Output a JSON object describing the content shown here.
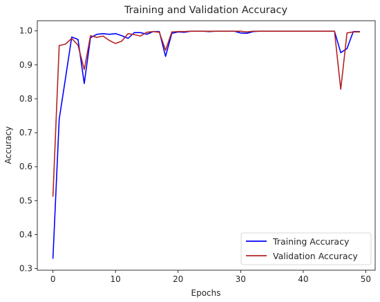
{
  "chart_data": {
    "type": "line",
    "title": "Training and Validation Accuracy",
    "xlabel": "Epochs",
    "ylabel": "Accuracy",
    "xlim": [
      -2.5,
      51.5
    ],
    "ylim": [
      0.295,
      1.03
    ],
    "xticks": [
      0,
      10,
      20,
      30,
      40,
      50
    ],
    "yticks": [
      0.3,
      0.4,
      0.5,
      0.6,
      0.7,
      0.8,
      0.9,
      1.0
    ],
    "ytick_labels": [
      "0.3",
      "0.4",
      "0.5",
      "0.6",
      "0.7",
      "0.8",
      "0.9",
      "1.0"
    ],
    "grid": false,
    "legend_position": "lower-right",
    "x": [
      0,
      1,
      2,
      3,
      4,
      5,
      6,
      7,
      8,
      9,
      10,
      11,
      12,
      13,
      14,
      15,
      16,
      17,
      18,
      19,
      20,
      21,
      22,
      23,
      24,
      25,
      26,
      27,
      28,
      29,
      30,
      31,
      32,
      33,
      34,
      35,
      36,
      37,
      38,
      39,
      40,
      41,
      42,
      43,
      44,
      45,
      46,
      47,
      48,
      49
    ],
    "series": [
      {
        "name": "Training Accuracy",
        "color": "#0000ff",
        "values": [
          0.33,
          0.74,
          0.86,
          0.982,
          0.975,
          0.845,
          0.98,
          0.99,
          0.992,
          0.99,
          0.992,
          0.986,
          0.978,
          0.995,
          0.995,
          0.99,
          0.998,
          0.998,
          0.925,
          0.993,
          0.997,
          0.996,
          0.999,
          0.999,
          0.999,
          0.998,
          0.999,
          0.999,
          0.999,
          0.999,
          0.994,
          0.993,
          0.998,
          0.999,
          0.999,
          0.999,
          0.999,
          0.999,
          0.999,
          0.999,
          0.999,
          0.999,
          0.999,
          0.999,
          0.999,
          0.999,
          0.936,
          0.948,
          0.998,
          0.998
        ]
      },
      {
        "name": "Validation Accuracy",
        "color": "#b22222",
        "values": [
          0.513,
          0.957,
          0.961,
          0.978,
          0.958,
          0.886,
          0.986,
          0.981,
          0.985,
          0.972,
          0.963,
          0.97,
          0.992,
          0.989,
          0.985,
          0.996,
          0.998,
          0.996,
          0.943,
          0.997,
          0.998,
          0.998,
          0.999,
          0.999,
          0.999,
          0.999,
          0.999,
          0.999,
          0.999,
          0.999,
          0.999,
          0.997,
          0.999,
          0.999,
          0.999,
          0.999,
          0.999,
          0.999,
          0.999,
          0.999,
          0.999,
          0.999,
          0.999,
          0.999,
          0.999,
          0.999,
          0.828,
          0.994,
          0.997,
          0.997
        ]
      }
    ]
  }
}
